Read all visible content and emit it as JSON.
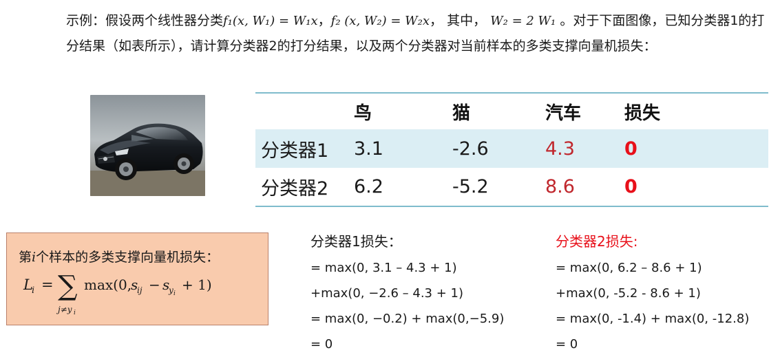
{
  "intro": {
    "prefix": "示例：假设两个线性器分类",
    "f1": "f₁(x, W₁) = W₁x",
    "sep1": "，",
    "f2": "f₂ (x, W₂) = W₂x",
    "sep2": "，  其中，",
    "w2": "W₂ = 2 W₁",
    "rest": "。对于下面图像，已知分类器1的打分结果（如表所示），请计算分类器2的打分结果，以及两个分类器对当前样本的多类支撑向量机损失："
  },
  "table": {
    "headers": [
      "",
      "鸟",
      "猫",
      "汽车",
      "损失"
    ],
    "rows": [
      {
        "name": "分类器1",
        "bird": "3.1",
        "cat": "-2.6",
        "car": "4.3",
        "loss": "0"
      },
      {
        "name": "分类器2",
        "bird": "6.2",
        "cat": "-5.2",
        "car": "8.6",
        "loss": "0"
      }
    ]
  },
  "formula_box": {
    "title_prefix": "第",
    "title_var": "i",
    "title_suffix": "个样本的多类支撑向量机损失："
  },
  "calc1": {
    "heading": "分类器1损失：",
    "lines": [
      "= max(0, 3.1 – 4.3 + 1)",
      "+max(0, −2.6 – 4.3 + 1)",
      "= max(0, −0.2) + max(0,−5.9)",
      "= 0"
    ]
  },
  "calc2": {
    "heading": "分类器2损失:",
    "lines": [
      "= max(0, 6.2 – 8.6 + 1)",
      "+max(0, -5.2 - 8.6 + 1)",
      "= max(0, -1.4) + max(0, -12.8)",
      "= 0"
    ]
  },
  "colors": {
    "accent_red": "#e8101a",
    "car_red": "#c0272d",
    "row_highlight": "#dbeef4",
    "table_rule": "#7fbccc",
    "box_fill": "#f9cbad"
  }
}
